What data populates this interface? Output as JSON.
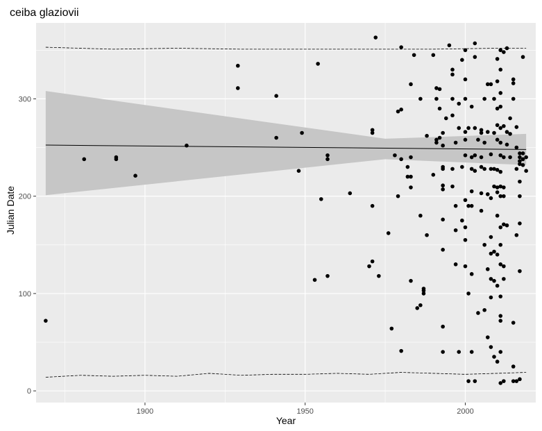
{
  "chart_data": {
    "type": "scatter",
    "title": "ceiba glaziovii",
    "xlabel": "Year",
    "ylabel": "Julian Date",
    "xlim": [
      1866,
      2022
    ],
    "ylim": [
      -12,
      378
    ],
    "x_ticks": [
      1900,
      1950,
      2000
    ],
    "y_ticks": [
      0,
      100,
      200,
      300
    ],
    "grid": true,
    "colors": {
      "panel": "#ebebeb",
      "grid_major": "#ffffff",
      "points": "#000000",
      "ribbon": "#c6c6c6",
      "trend": "#000000"
    },
    "trend_line": {
      "x": [
        1869,
        2019
      ],
      "y": [
        252.5,
        248.0
      ]
    },
    "confidence_band": {
      "x": [
        1869,
        1975,
        2019
      ],
      "lower": [
        201,
        238,
        232
      ],
      "upper": [
        308,
        259,
        264
      ]
    },
    "upper_dashed_band": {
      "x": [
        1869,
        1890,
        1910,
        1930,
        1950,
        1970,
        1990,
        2010,
        2019
      ],
      "y": [
        353,
        351,
        352,
        351,
        351,
        351,
        351,
        352,
        352
      ]
    },
    "lower_dashed_band": {
      "x": [
        1869,
        1880,
        1890,
        1900,
        1910,
        1920,
        1930,
        1940,
        1950,
        1960,
        1970,
        1980,
        1990,
        2000,
        2010,
        2019
      ],
      "y": [
        14,
        16,
        15,
        16,
        15,
        18,
        16,
        17,
        17,
        18,
        17,
        19,
        18,
        17,
        18,
        19
      ]
    },
    "points": [
      [
        1869,
        72
      ],
      [
        1881,
        238
      ],
      [
        1891,
        238
      ],
      [
        1891,
        240
      ],
      [
        1897,
        221
      ],
      [
        1913,
        252
      ],
      [
        1929,
        334
      ],
      [
        1929,
        311
      ],
      [
        1941,
        303
      ],
      [
        1941,
        260
      ],
      [
        1948,
        226
      ],
      [
        1949,
        265
      ],
      [
        1953,
        114
      ],
      [
        1954,
        336
      ],
      [
        1955,
        197
      ],
      [
        1957,
        242
      ],
      [
        1957,
        238
      ],
      [
        1957,
        118
      ],
      [
        1964,
        203
      ],
      [
        1970,
        128
      ],
      [
        1971,
        133
      ],
      [
        1971,
        190
      ],
      [
        1971,
        265
      ],
      [
        1971,
        268
      ],
      [
        1972,
        363
      ],
      [
        1973,
        118
      ],
      [
        1976,
        162
      ],
      [
        1977,
        64
      ],
      [
        1978,
        242
      ],
      [
        1979,
        287
      ],
      [
        1979,
        200
      ],
      [
        1980,
        289
      ],
      [
        1980,
        238
      ],
      [
        1980,
        41
      ],
      [
        1980,
        353
      ],
      [
        1982,
        230
      ],
      [
        1982,
        220
      ],
      [
        1983,
        315
      ],
      [
        1983,
        209
      ],
      [
        1983,
        113
      ],
      [
        1983,
        240
      ],
      [
        1983,
        220
      ],
      [
        1984,
        345
      ],
      [
        1985,
        85
      ],
      [
        1986,
        88
      ],
      [
        1986,
        180
      ],
      [
        1986,
        300
      ],
      [
        1987,
        105
      ],
      [
        1987,
        100
      ],
      [
        1987,
        103
      ],
      [
        1988,
        160
      ],
      [
        1988,
        262
      ],
      [
        1990,
        345
      ],
      [
        1990,
        222
      ],
      [
        1991,
        258
      ],
      [
        1991,
        311
      ],
      [
        1991,
        300
      ],
      [
        1991,
        255
      ],
      [
        1992,
        310
      ],
      [
        1992,
        290
      ],
      [
        1992,
        260
      ],
      [
        1993,
        230
      ],
      [
        1993,
        265
      ],
      [
        1993,
        211
      ],
      [
        1993,
        207
      ],
      [
        1993,
        228
      ],
      [
        1993,
        176
      ],
      [
        1993,
        145
      ],
      [
        1993,
        66
      ],
      [
        1993,
        40
      ],
      [
        1993,
        252
      ],
      [
        1994,
        280
      ],
      [
        1995,
        355
      ],
      [
        1996,
        330
      ],
      [
        1996,
        325
      ],
      [
        1996,
        300
      ],
      [
        1996,
        283
      ],
      [
        1996,
        228
      ],
      [
        1996,
        210
      ],
      [
        1997,
        130
      ],
      [
        1997,
        190
      ],
      [
        1997,
        165
      ],
      [
        1997,
        255
      ],
      [
        1998,
        270
      ],
      [
        1998,
        295
      ],
      [
        1998,
        40
      ],
      [
        1999,
        340
      ],
      [
        1999,
        230
      ],
      [
        1999,
        175
      ],
      [
        2000,
        350
      ],
      [
        2000,
        320
      ],
      [
        2000,
        300
      ],
      [
        2000,
        266
      ],
      [
        2000,
        258
      ],
      [
        2000,
        242
      ],
      [
        2000,
        196
      ],
      [
        2000,
        168
      ],
      [
        2000,
        155
      ],
      [
        2000,
        128
      ],
      [
        2001,
        270
      ],
      [
        2001,
        190
      ],
      [
        2001,
        100
      ],
      [
        2001,
        10
      ],
      [
        2002,
        292
      ],
      [
        2002,
        240
      ],
      [
        2002,
        228
      ],
      [
        2002,
        205
      ],
      [
        2002,
        190
      ],
      [
        2002,
        120
      ],
      [
        2002,
        40
      ],
      [
        2003,
        357
      ],
      [
        2003,
        343
      ],
      [
        2003,
        270
      ],
      [
        2003,
        242
      ],
      [
        2003,
        226
      ],
      [
        2003,
        10
      ],
      [
        2004,
        80
      ],
      [
        2004,
        258
      ],
      [
        2005,
        230
      ],
      [
        2005,
        240
      ],
      [
        2005,
        265
      ],
      [
        2005,
        268
      ],
      [
        2005,
        203
      ],
      [
        2005,
        185
      ],
      [
        2006,
        83
      ],
      [
        2006,
        150
      ],
      [
        2006,
        228
      ],
      [
        2006,
        255
      ],
      [
        2006,
        300
      ],
      [
        2007,
        315
      ],
      [
        2007,
        266
      ],
      [
        2007,
        202
      ],
      [
        2007,
        125
      ],
      [
        2007,
        55
      ],
      [
        2008,
        315
      ],
      [
        2008,
        243
      ],
      [
        2008,
        228
      ],
      [
        2008,
        198
      ],
      [
        2008,
        158
      ],
      [
        2008,
        141
      ],
      [
        2008,
        115
      ],
      [
        2008,
        96
      ],
      [
        2008,
        45
      ],
      [
        2009,
        300
      ],
      [
        2009,
        265
      ],
      [
        2009,
        228
      ],
      [
        2009,
        210
      ],
      [
        2009,
        143
      ],
      [
        2009,
        113
      ],
      [
        2009,
        35
      ],
      [
        2010,
        341
      ],
      [
        2010,
        318
      ],
      [
        2010,
        290
      ],
      [
        2010,
        273
      ],
      [
        2010,
        258
      ],
      [
        2010,
        227
      ],
      [
        2010,
        209
      ],
      [
        2010,
        204
      ],
      [
        2010,
        180
      ],
      [
        2010,
        140
      ],
      [
        2010,
        108
      ],
      [
        2010,
        30
      ],
      [
        2011,
        350
      ],
      [
        2011,
        330
      ],
      [
        2011,
        306
      ],
      [
        2011,
        292
      ],
      [
        2011,
        270
      ],
      [
        2011,
        255
      ],
      [
        2011,
        242
      ],
      [
        2011,
        225
      ],
      [
        2011,
        210
      ],
      [
        2011,
        200
      ],
      [
        2011,
        168
      ],
      [
        2011,
        150
      ],
      [
        2011,
        130
      ],
      [
        2011,
        97
      ],
      [
        2011,
        77
      ],
      [
        2011,
        72
      ],
      [
        2011,
        40
      ],
      [
        2011,
        8
      ],
      [
        2012,
        348
      ],
      [
        2012,
        272
      ],
      [
        2012,
        240
      ],
      [
        2012,
        209
      ],
      [
        2012,
        200
      ],
      [
        2012,
        171
      ],
      [
        2012,
        128
      ],
      [
        2012,
        115
      ],
      [
        2012,
        10
      ],
      [
        2013,
        352
      ],
      [
        2013,
        266
      ],
      [
        2013,
        253
      ],
      [
        2013,
        170
      ],
      [
        2014,
        280
      ],
      [
        2014,
        264
      ],
      [
        2014,
        240
      ],
      [
        2015,
        320
      ],
      [
        2015,
        316
      ],
      [
        2015,
        300
      ],
      [
        2015,
        70
      ],
      [
        2015,
        25
      ],
      [
        2015,
        10
      ],
      [
        2016,
        271
      ],
      [
        2016,
        250
      ],
      [
        2016,
        228
      ],
      [
        2016,
        160
      ],
      [
        2016,
        10
      ],
      [
        2017,
        244
      ],
      [
        2017,
        240
      ],
      [
        2017,
        236
      ],
      [
        2017,
        233
      ],
      [
        2017,
        215
      ],
      [
        2017,
        200
      ],
      [
        2017,
        172
      ],
      [
        2017,
        123
      ],
      [
        2017,
        12
      ],
      [
        2018,
        343
      ],
      [
        2018,
        244
      ],
      [
        2018,
        238
      ],
      [
        2018,
        232
      ],
      [
        2019,
        240
      ],
      [
        2019,
        226
      ]
    ]
  }
}
